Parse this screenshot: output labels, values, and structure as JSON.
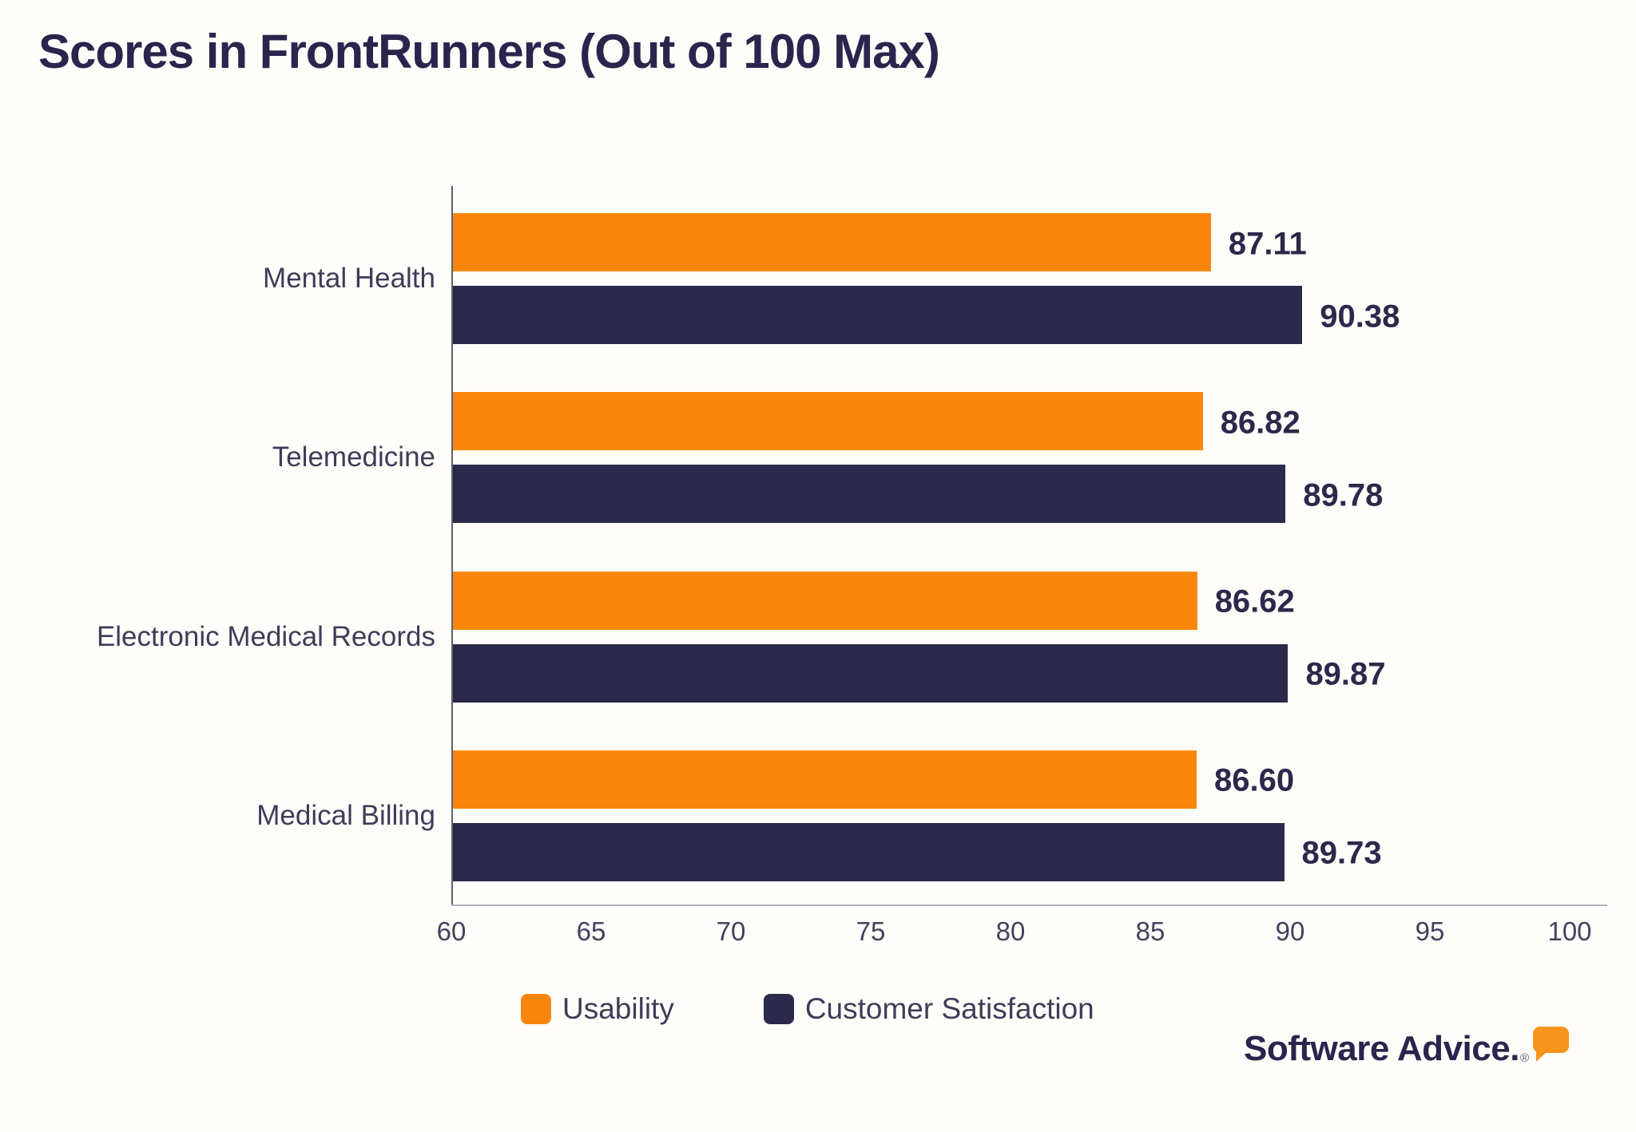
{
  "title": "Scores in FrontRunners (Out of 100 Max)",
  "chart_data": {
    "type": "bar",
    "orientation": "horizontal",
    "title": "Scores in FrontRunners (Out of 100 Max)",
    "categories": [
      "Mental Health",
      "Telemedicine",
      "Electronic Medical Records",
      "Medical Billing"
    ],
    "series": [
      {
        "name": "Usability",
        "color": "#fa870d",
        "values": [
          87.11,
          86.82,
          86.62,
          86.6
        ],
        "display": [
          "87.11",
          "86.82",
          "86.62",
          "86.60"
        ]
      },
      {
        "name": "Customer Satisfaction",
        "color": "#2b2a4a",
        "values": [
          90.38,
          89.78,
          89.87,
          89.73
        ],
        "display": [
          "90.38",
          "89.78",
          "89.87",
          "89.73"
        ]
      }
    ],
    "xlim": [
      60,
      100
    ],
    "xticks": [
      "60",
      "65",
      "70",
      "75",
      "80",
      "85",
      "90",
      "95",
      "100"
    ],
    "grid": false,
    "value_labels": true,
    "legend_position": "bottom"
  },
  "legend": {
    "items": [
      {
        "label": "Usability",
        "color": "#fa870d"
      },
      {
        "label": "Customer Satisfaction",
        "color": "#2b2a4a"
      }
    ]
  },
  "branding": {
    "logo_text": "Software Advice.",
    "registered_mark": "®",
    "bubble_color": "#f6941c"
  },
  "colors": {
    "accent_orange": "#fa870d",
    "brand_navy": "#2b2a4a",
    "heading_text": "#29254c",
    "muted_text": "#3d3d58"
  }
}
